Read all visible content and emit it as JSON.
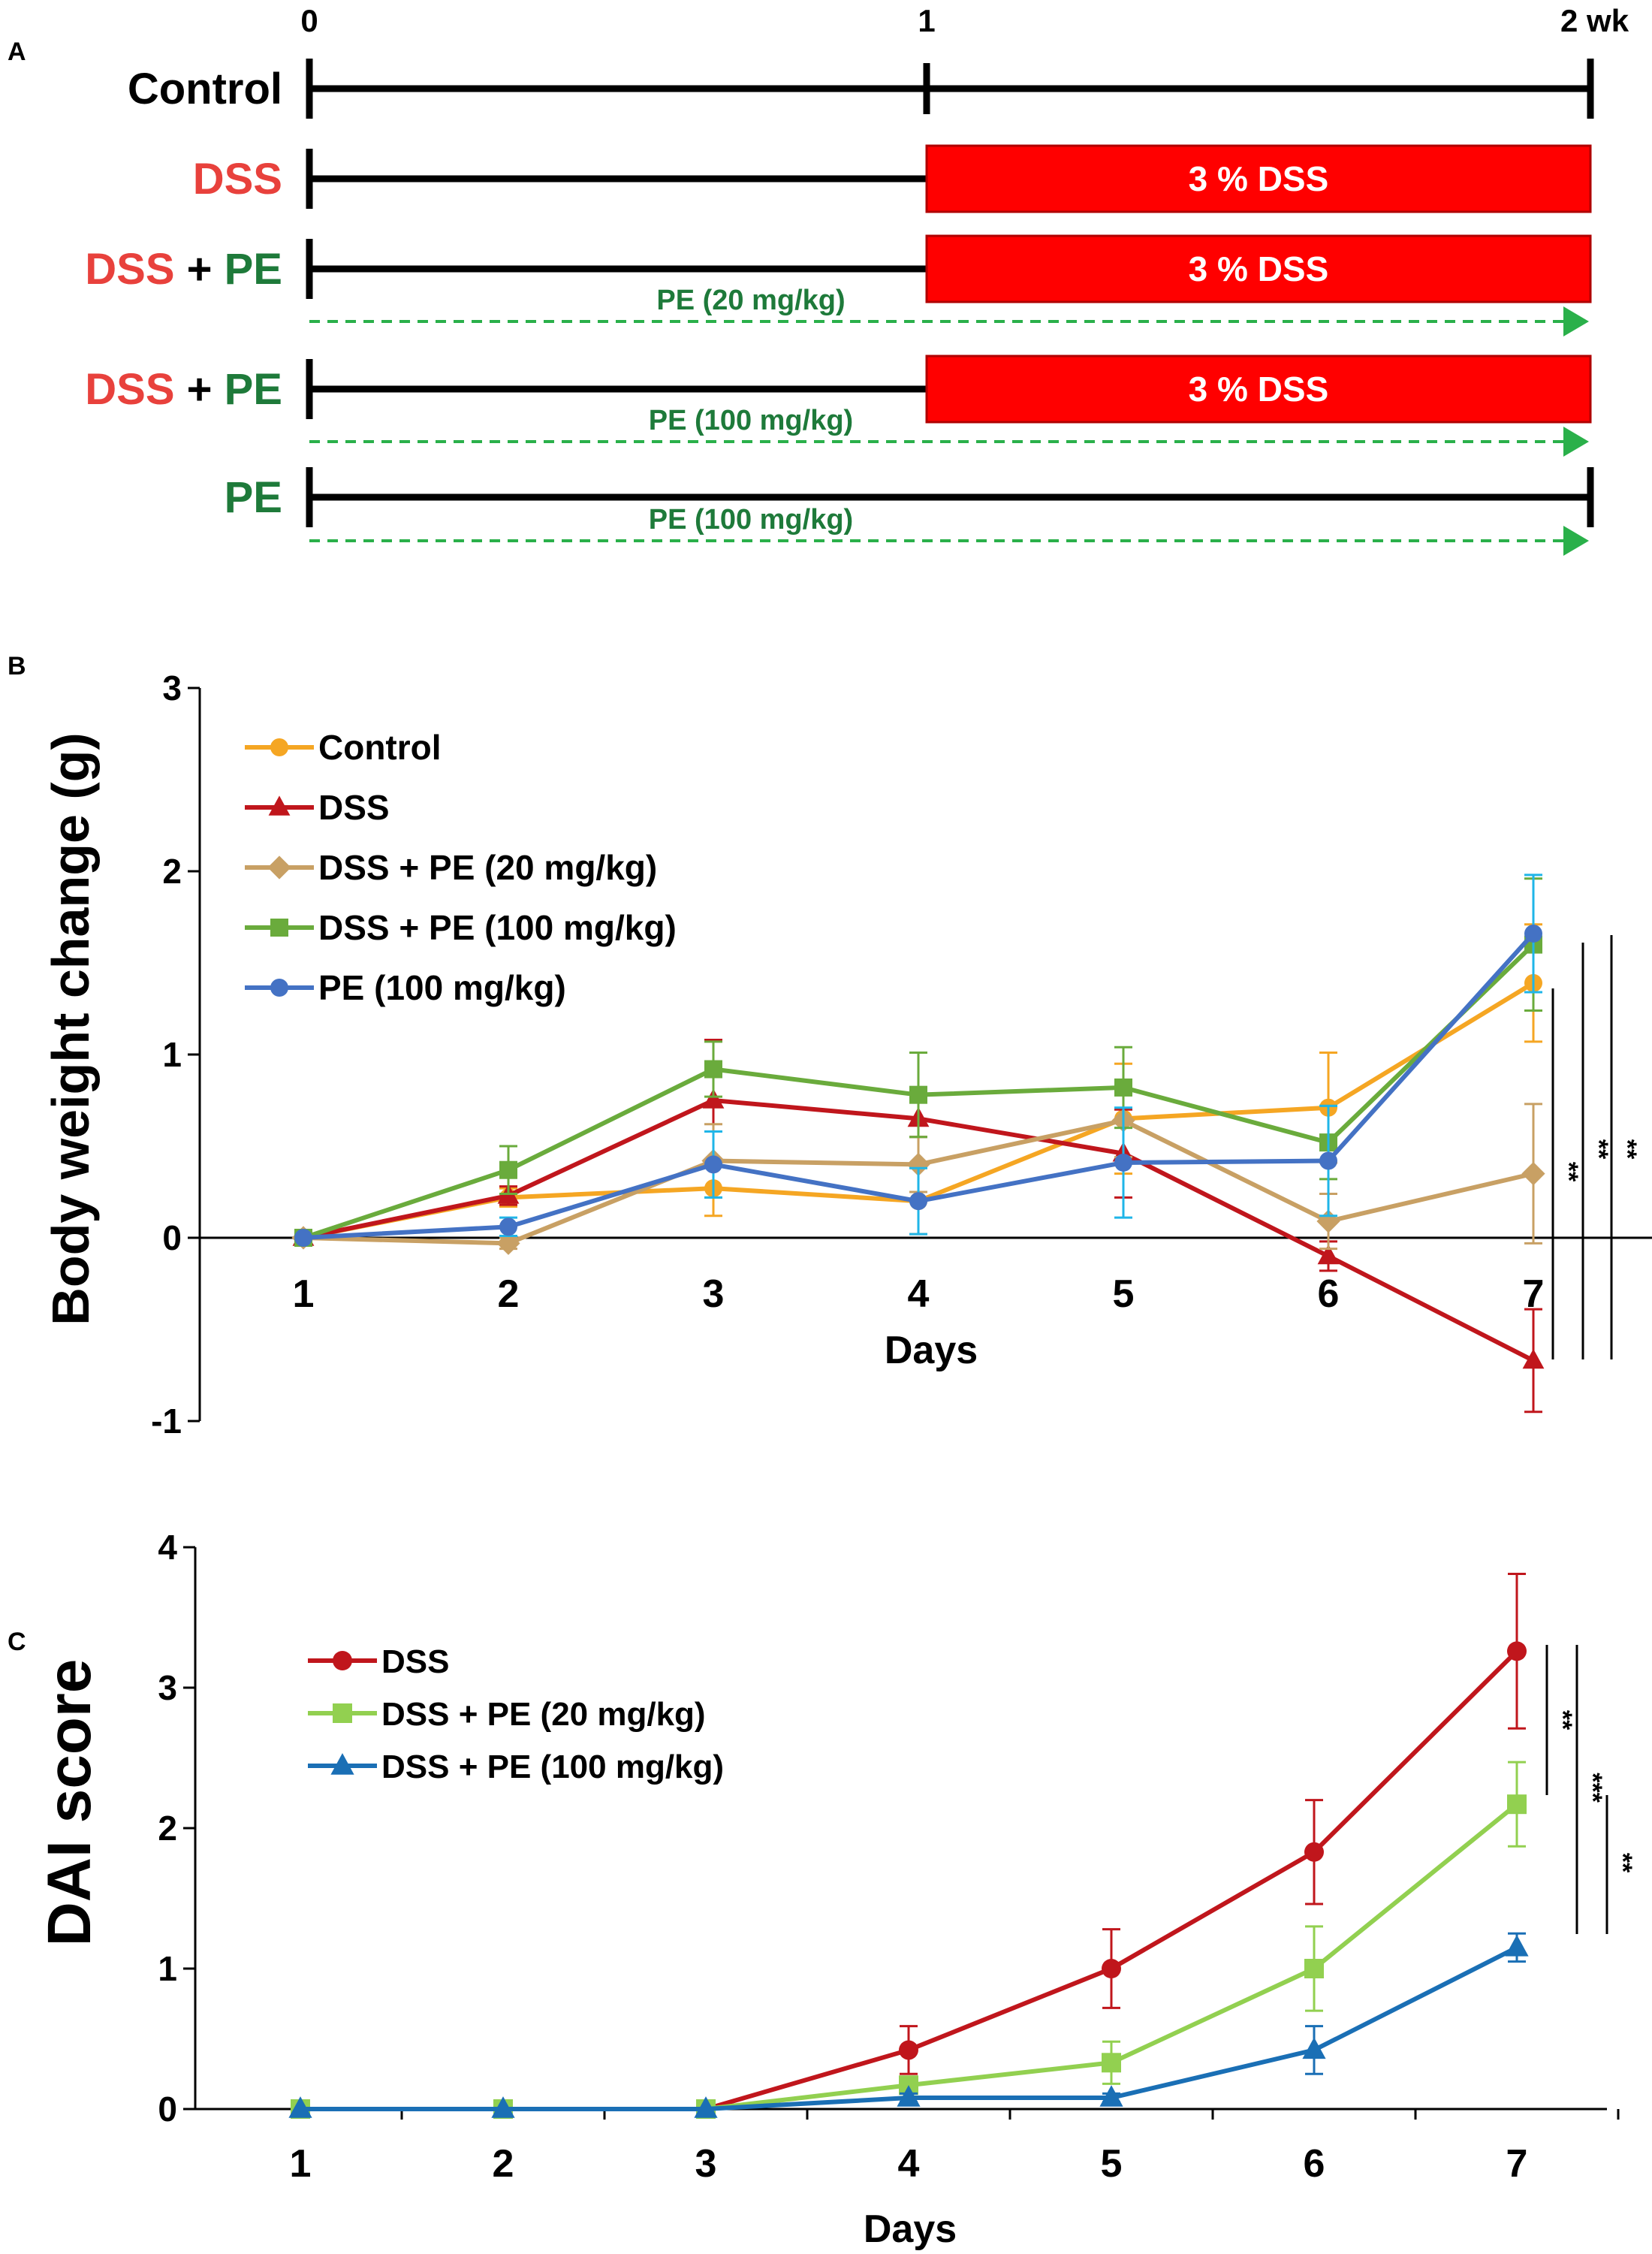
{
  "figure": {
    "panel_a": {
      "label": "A",
      "timeline_ticks": [
        "0",
        "1",
        "2 wk"
      ],
      "rows": [
        {
          "name": "Control",
          "parts": [
            {
              "text": "Control",
              "color": "#000000"
            }
          ],
          "dss": false,
          "pe_label": ""
        },
        {
          "name": "DSS",
          "parts": [
            {
              "text": "DSS",
              "color": "#e8413c"
            }
          ],
          "dss": true,
          "pe_label": ""
        },
        {
          "name": "DSS + PE 20",
          "parts": [
            {
              "text": "DSS",
              "color": "#e8413c"
            },
            {
              "text": " + ",
              "color": "#000000"
            },
            {
              "text": "PE",
              "color": "#1e7a3a"
            }
          ],
          "dss": true,
          "pe_label": "PE (20 mg/kg)"
        },
        {
          "name": "DSS + PE 100",
          "parts": [
            {
              "text": "DSS",
              "color": "#e8413c"
            },
            {
              "text": " + ",
              "color": "#000000"
            },
            {
              "text": "PE",
              "color": "#1e7a3a"
            }
          ],
          "dss": true,
          "pe_label": "PE (100 mg/kg)"
        },
        {
          "name": "PE",
          "parts": [
            {
              "text": "PE",
              "color": "#1e7a3a"
            }
          ],
          "dss": false,
          "pe_label": "PE (100 mg/kg)"
        }
      ],
      "dss_label": "3 % DSS",
      "colors": {
        "dss_box": "#ff0000",
        "pe_arrow": "#2ab04a",
        "pe_text": "#1e7a3a"
      }
    }
  },
  "chart_data": [
    {
      "panel": "B",
      "type": "line",
      "title": "",
      "xlabel": "Days",
      "ylabel": "Body weight change (g)",
      "categories": [
        1,
        2,
        3,
        4,
        5,
        6,
        7
      ],
      "ylim": [
        -1,
        3
      ],
      "yticks": [
        -1,
        0,
        1,
        2,
        3
      ],
      "series": [
        {
          "name": "Control",
          "marker": "circle",
          "color": "#f5a623",
          "error_color": "#f5a623",
          "values": [
            0,
            0.22,
            0.27,
            0.2,
            0.65,
            0.71,
            1.39
          ],
          "errors": [
            0,
            0.05,
            0.15,
            0.18,
            0.3,
            0.3,
            0.32
          ]
        },
        {
          "name": "DSS",
          "marker": "triangle",
          "color": "#c0161c",
          "error_color": "#c0161c",
          "values": [
            0,
            0.23,
            0.75,
            0.65,
            0.46,
            -0.1,
            -0.67
          ],
          "errors": [
            0,
            0.05,
            0.33,
            0.1,
            0.24,
            0.08,
            0.28
          ]
        },
        {
          "name": "DSS + PE (20 mg/kg)",
          "marker": "diamond",
          "color": "#c8a064",
          "error_color": "#c8a064",
          "values": [
            0,
            -0.03,
            0.42,
            0.4,
            0.64,
            0.09,
            0.35
          ],
          "errors": [
            0,
            0.03,
            0.2,
            0.15,
            0.2,
            0.15,
            0.38
          ]
        },
        {
          "name": "DSS + PE (100 mg/kg)",
          "marker": "square",
          "color": "#6aab3c",
          "error_color": "#6aab3c",
          "values": [
            0,
            0.37,
            0.92,
            0.78,
            0.82,
            0.52,
            1.6
          ],
          "errors": [
            0,
            0.13,
            0.15,
            0.23,
            0.22,
            0.2,
            0.36
          ]
        },
        {
          "name": "PE (100 mg/kg)",
          "marker": "circle",
          "color": "#4472c4",
          "error_color": "#1fb5e8",
          "values": [
            0,
            0.06,
            0.4,
            0.2,
            0.41,
            0.42,
            1.66
          ],
          "errors": [
            0,
            0.05,
            0.18,
            0.18,
            0.3,
            0.3,
            0.32
          ]
        }
      ],
      "significance": [
        "**",
        "**",
        "**"
      ],
      "legend_position": "top-left"
    },
    {
      "panel": "C",
      "type": "line",
      "title": "",
      "xlabel": "Days",
      "ylabel": "DAI score",
      "categories": [
        1,
        2,
        3,
        4,
        5,
        6,
        7
      ],
      "ylim": [
        0,
        4
      ],
      "yticks": [
        0,
        1,
        2,
        3,
        4
      ],
      "series": [
        {
          "name": "DSS",
          "marker": "circle",
          "color": "#c0161c",
          "values": [
            0,
            0,
            0,
            0.42,
            1.0,
            1.83,
            3.26
          ],
          "errors": [
            0,
            0,
            0,
            0.17,
            0.28,
            0.37,
            0.55
          ]
        },
        {
          "name": "DSS + PE (20 mg/kg)",
          "marker": "square",
          "color": "#92d050",
          "values": [
            0,
            0,
            0,
            0.17,
            0.33,
            1.0,
            2.17
          ],
          "errors": [
            0,
            0,
            0,
            0.06,
            0.15,
            0.3,
            0.3
          ]
        },
        {
          "name": "DSS + PE (100 mg/kg)",
          "marker": "triangle",
          "color": "#1a6fb5",
          "values": [
            0,
            0,
            0,
            0.08,
            0.08,
            0.42,
            1.15
          ],
          "errors": [
            0,
            0,
            0,
            0.03,
            0.03,
            0.17,
            0.1
          ]
        }
      ],
      "significance": [
        "**",
        "***",
        "**"
      ],
      "legend_position": "top-left"
    }
  ]
}
